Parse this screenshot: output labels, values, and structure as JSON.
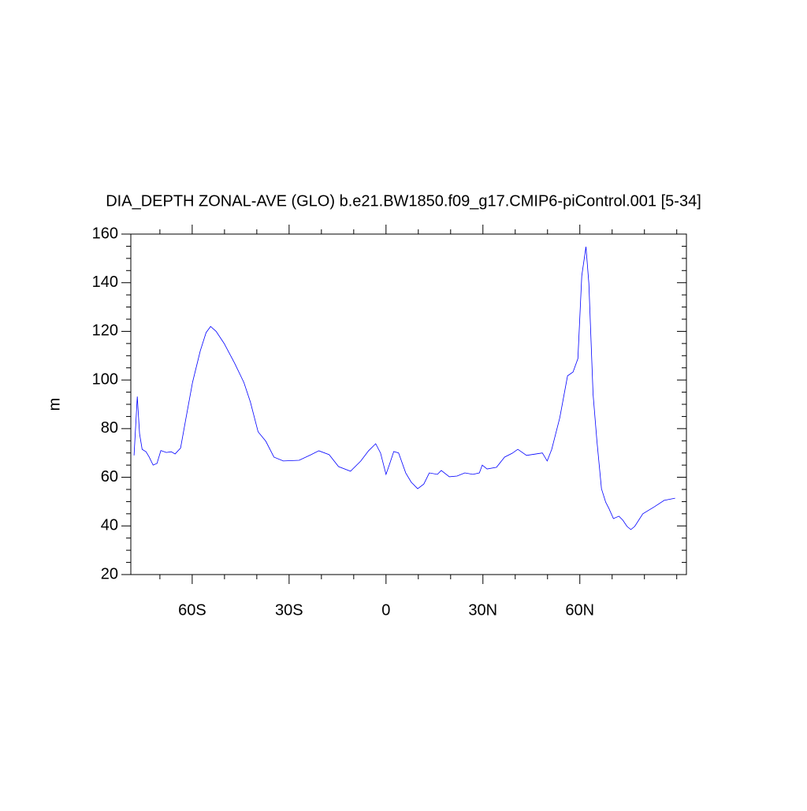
{
  "chart_data": {
    "type": "line",
    "title": "DIA_DEPTH ZONAL-AVE (GLO) b.e21.BW1850.f09_g17.CMIP6-piControl.001 [5-34]",
    "y_label": "m",
    "xlim": [
      -79,
      93
    ],
    "ylim": [
      20,
      160
    ],
    "xticks": [
      {
        "value": -60,
        "label": "60S"
      },
      {
        "value": -30,
        "label": "30S"
      },
      0,
      {
        "value": 30,
        "label": "30N"
      },
      {
        "value": 60,
        "label": "60N"
      }
    ],
    "xminor_ticks": [
      -70,
      -50,
      -40,
      -20,
      -10,
      10,
      20,
      40,
      50,
      70,
      80,
      90
    ],
    "yticks": [
      20,
      40,
      60,
      80,
      100,
      120,
      140,
      160
    ],
    "yminor_ticks": [
      25,
      30,
      35,
      45,
      50,
      55,
      65,
      70,
      75,
      85,
      90,
      95,
      105,
      110,
      115,
      125,
      130,
      135,
      145,
      150,
      155
    ],
    "x": [
      -78,
      -77,
      -76.3,
      -75.5,
      -74.3,
      -73.3,
      -72.1,
      -70.9,
      -69.7,
      -68,
      -66.5,
      -65.3,
      -63.6,
      -61.9,
      -59.9,
      -57.5,
      -55.7,
      -54.3,
      -52.6,
      -50.1,
      -46.9,
      -44,
      -42,
      -39.6,
      -37.2,
      -34.7,
      -31.8,
      -26.9,
      -23.2,
      -20.8,
      -17.6,
      -14.7,
      -11,
      -7.8,
      -5.4,
      -3.2,
      -1.7,
      0,
      1,
      2.4,
      3.9,
      6.1,
      7.8,
      9.8,
      11.7,
      13.4,
      15.9,
      17.1,
      19.6,
      22,
      24.4,
      26.9,
      28.9,
      29.8,
      31.3,
      34.2,
      36.7,
      39.1,
      40.8,
      43.5,
      46.5,
      48.4,
      49.9,
      51.3,
      53.8,
      56.2,
      57.9,
      59.4,
      60.6,
      61.9,
      62.8,
      64.1,
      65.3,
      66.7,
      68,
      69,
      70.4,
      72.1,
      73.3,
      74.6,
      75.8,
      77,
      79.5,
      83.1,
      86.1,
      89.5
    ],
    "series": [
      {
        "color": "#0000ff",
        "values": [
          69,
          93.2,
          78,
          71.5,
          70.5,
          68.3,
          65,
          65.7,
          71,
          70.2,
          70.5,
          69.6,
          72,
          84.5,
          99,
          112,
          119.5,
          122,
          120,
          115,
          107,
          99,
          91,
          78.7,
          74.8,
          68.3,
          66.7,
          67,
          69.3,
          70.9,
          69.3,
          64.4,
          62.5,
          66.7,
          70.9,
          73.8,
          70,
          61.2,
          65,
          70.6,
          70,
          61.8,
          58,
          55.3,
          57.2,
          61.8,
          61.2,
          62.8,
          60.2,
          60.5,
          61.8,
          61.2,
          61.8,
          65,
          63.4,
          64.1,
          68.3,
          69.9,
          71.5,
          69,
          69.6,
          70,
          66.7,
          71.5,
          84.5,
          101.7,
          103.3,
          108.8,
          142.8,
          154.8,
          139.6,
          94.2,
          74.8,
          55.3,
          49.8,
          47.2,
          43,
          44,
          42.4,
          39.8,
          38.5,
          39.8,
          45,
          47.9,
          50.5,
          51.4
        ]
      }
    ]
  }
}
